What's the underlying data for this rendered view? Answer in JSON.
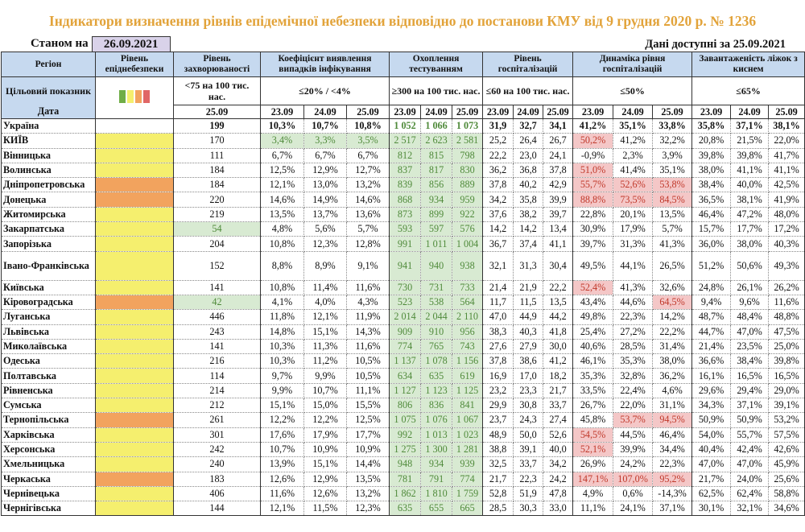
{
  "title": "Індикатори визначення рівнів епідемічної небезпеки відповідно до постанови КМУ від 9 грудня 2020 р. № 1236",
  "as_of_label": "Станом на",
  "as_of_date": "26.09.2021",
  "available_label": "Дані доступні за 25.09.2021",
  "headers": {
    "region": "Регіон",
    "epid_level": "Рівень епіднебезпеки",
    "incidence": "Рівень захворюваності",
    "coef": "Коефіцієнт виявлення випадків інфікування",
    "testing": "Охоплення тестуванням",
    "hosp": "Рівень госпіталізацій",
    "dyn": "Динаміка рівня госпіталізацій",
    "beds": "Завантаженість ліжок з киснем"
  },
  "targets": {
    "label": "Цільовий показник",
    "incidence": "<75 на 100 тис. нас.",
    "coef": "≤20% / <4%",
    "testing": "≥300 на 100 тис. нас.",
    "hosp": "≤60 на 100 тис. нас.",
    "dyn": "≤50%",
    "beds": "≤65%"
  },
  "legend_colors": [
    "#70ad47",
    "#f5ef6e",
    "#f2a35e",
    "#e06666"
  ],
  "date_label": "Дата",
  "incidence_date": "25.09",
  "dates": [
    "23.09",
    "24.09",
    "25.09"
  ],
  "colors": {
    "yellow": "#f5ef6e",
    "orange": "#f2a35e",
    "green_bg": "#d8ead2",
    "red_bg": "#f4c7c7"
  },
  "rows": [
    {
      "name": "Україна",
      "level": "none",
      "incidence": "199",
      "coef": [
        "10,3%",
        "10,7%",
        "10,8%"
      ],
      "testing": [
        "1 052",
        "1 066",
        "1 073"
      ],
      "hosp": [
        "31,9",
        "32,7",
        "34,1"
      ],
      "dyn": [
        "41,2%",
        "35,1%",
        "33,8%"
      ],
      "beds": [
        "35,8%",
        "37,1%",
        "38,1%"
      ]
    },
    {
      "name": "КИЇВ",
      "level": "yellow",
      "incidence": "170",
      "coef": [
        "3,4%",
        "3,3%",
        "3,5%"
      ],
      "testing": [
        "2 517",
        "2 623",
        "2 581"
      ],
      "hosp": [
        "25,2",
        "26,4",
        "26,7"
      ],
      "dyn": [
        "50,2%",
        "41,2%",
        "32,2%"
      ],
      "beds": [
        "20,8%",
        "21,5%",
        "22,0%"
      ]
    },
    {
      "name": "Вінницька",
      "level": "yellow",
      "incidence": "111",
      "coef": [
        "6,7%",
        "6,7%",
        "6,7%"
      ],
      "testing": [
        "812",
        "815",
        "798"
      ],
      "hosp": [
        "22,2",
        "23,0",
        "24,1"
      ],
      "dyn": [
        "-0,9%",
        "2,3%",
        "3,9%"
      ],
      "beds": [
        "39,8%",
        "39,8%",
        "41,7%"
      ]
    },
    {
      "name": "Волинська",
      "level": "yellow",
      "incidence": "184",
      "coef": [
        "12,5%",
        "12,9%",
        "12,7%"
      ],
      "testing": [
        "837",
        "817",
        "830"
      ],
      "hosp": [
        "36,2",
        "36,8",
        "37,8"
      ],
      "dyn": [
        "51,0%",
        "41,4%",
        "35,1%"
      ],
      "beds": [
        "38,0%",
        "41,1%",
        "41,1%"
      ]
    },
    {
      "name": "Дніпропетровська",
      "level": "orange",
      "incidence": "184",
      "coef": [
        "12,1%",
        "13,0%",
        "13,2%"
      ],
      "testing": [
        "839",
        "856",
        "889"
      ],
      "hosp": [
        "37,8",
        "40,2",
        "42,9"
      ],
      "dyn": [
        "55,7%",
        "52,6%",
        "53,8%"
      ],
      "beds": [
        "38,4%",
        "40,0%",
        "42,5%"
      ]
    },
    {
      "name": "Донецька",
      "level": "orange",
      "incidence": "220",
      "coef": [
        "14,6%",
        "14,9%",
        "14,6%"
      ],
      "testing": [
        "868",
        "934",
        "959"
      ],
      "hosp": [
        "34,2",
        "35,8",
        "39,9"
      ],
      "dyn": [
        "88,8%",
        "73,5%",
        "84,5%"
      ],
      "beds": [
        "36,5%",
        "38,1%",
        "41,9%"
      ]
    },
    {
      "name": "Житомирська",
      "level": "yellow",
      "incidence": "219",
      "coef": [
        "13,5%",
        "13,7%",
        "13,6%"
      ],
      "testing": [
        "873",
        "899",
        "922"
      ],
      "hosp": [
        "37,6",
        "38,2",
        "39,7"
      ],
      "dyn": [
        "22,8%",
        "20,1%",
        "13,5%"
      ],
      "beds": [
        "46,4%",
        "47,2%",
        "48,0%"
      ]
    },
    {
      "name": "Закарпатська",
      "level": "yellow",
      "incidence": "54",
      "coef": [
        "4,8%",
        "5,6%",
        "5,7%"
      ],
      "testing": [
        "593",
        "597",
        "576"
      ],
      "hosp": [
        "14,2",
        "14,2",
        "13,4"
      ],
      "dyn": [
        "30,9%",
        "17,9%",
        "5,7%"
      ],
      "beds": [
        "15,7%",
        "17,7%",
        "17,2%"
      ]
    },
    {
      "name": "Запорізька",
      "level": "yellow",
      "incidence": "204",
      "coef": [
        "10,8%",
        "12,3%",
        "12,8%"
      ],
      "testing": [
        "991",
        "1 011",
        "1 004"
      ],
      "hosp": [
        "36,7",
        "37,4",
        "41,1"
      ],
      "dyn": [
        "39,7%",
        "31,3%",
        "41,3%"
      ],
      "beds": [
        "36,0%",
        "38,0%",
        "40,3%"
      ]
    },
    {
      "name": "Івано-Франківська",
      "level": "yellow",
      "incidence": "152",
      "coef": [
        "8,8%",
        "8,9%",
        "9,1%"
      ],
      "testing": [
        "941",
        "940",
        "938"
      ],
      "hosp": [
        "32,1",
        "31,3",
        "30,4"
      ],
      "dyn": [
        "49,5%",
        "44,1%",
        "26,5%"
      ],
      "beds": [
        "51,2%",
        "50,6%",
        "49,3%"
      ]
    },
    {
      "name": "Київська",
      "level": "yellow",
      "incidence": "141",
      "coef": [
        "10,8%",
        "11,4%",
        "11,6%"
      ],
      "testing": [
        "730",
        "731",
        "733"
      ],
      "hosp": [
        "21,4",
        "21,9",
        "22,2"
      ],
      "dyn": [
        "52,4%",
        "41,3%",
        "32,6%"
      ],
      "beds": [
        "24,8%",
        "26,1%",
        "26,2%"
      ]
    },
    {
      "name": "Кіровоградська",
      "level": "orange",
      "incidence": "42",
      "coef": [
        "4,1%",
        "4,0%",
        "4,3%"
      ],
      "testing": [
        "523",
        "538",
        "564"
      ],
      "hosp": [
        "11,7",
        "11,5",
        "13,5"
      ],
      "dyn": [
        "43,4%",
        "44,6%",
        "64,5%"
      ],
      "beds": [
        "9,4%",
        "9,6%",
        "11,6%"
      ]
    },
    {
      "name": "Луганська",
      "level": "yellow",
      "incidence": "446",
      "coef": [
        "11,8%",
        "12,1%",
        "11,9%"
      ],
      "testing": [
        "2 014",
        "2 044",
        "2 110"
      ],
      "hosp": [
        "47,0",
        "44,9",
        "44,2"
      ],
      "dyn": [
        "49,8%",
        "22,3%",
        "14,2%"
      ],
      "beds": [
        "48,7%",
        "48,4%",
        "48,8%"
      ]
    },
    {
      "name": "Львівська",
      "level": "yellow",
      "incidence": "243",
      "coef": [
        "14,8%",
        "15,1%",
        "14,3%"
      ],
      "testing": [
        "909",
        "910",
        "956"
      ],
      "hosp": [
        "38,3",
        "40,3",
        "41,8"
      ],
      "dyn": [
        "25,4%",
        "27,2%",
        "22,2%"
      ],
      "beds": [
        "44,7%",
        "47,0%",
        "47,5%"
      ]
    },
    {
      "name": "Миколаївська",
      "level": "yellow",
      "incidence": "141",
      "coef": [
        "10,3%",
        "11,3%",
        "11,6%"
      ],
      "testing": [
        "774",
        "765",
        "743"
      ],
      "hosp": [
        "27,6",
        "27,9",
        "30,0"
      ],
      "dyn": [
        "40,6%",
        "28,5%",
        "31,4%"
      ],
      "beds": [
        "21,4%",
        "23,5%",
        "25,0%"
      ]
    },
    {
      "name": "Одеська",
      "level": "yellow",
      "incidence": "216",
      "coef": [
        "10,3%",
        "11,2%",
        "10,5%"
      ],
      "testing": [
        "1 137",
        "1 078",
        "1 156"
      ],
      "hosp": [
        "37,8",
        "38,6",
        "41,2"
      ],
      "dyn": [
        "46,1%",
        "35,3%",
        "38,0%"
      ],
      "beds": [
        "36,6%",
        "38,4%",
        "39,8%"
      ]
    },
    {
      "name": "Полтавська",
      "level": "yellow",
      "incidence": "114",
      "coef": [
        "9,7%",
        "9,9%",
        "10,5%"
      ],
      "testing": [
        "634",
        "635",
        "619"
      ],
      "hosp": [
        "16,9",
        "17,0",
        "18,2"
      ],
      "dyn": [
        "35,3%",
        "32,8%",
        "36,2%"
      ],
      "beds": [
        "16,1%",
        "16,5%",
        "16,5%"
      ]
    },
    {
      "name": "Рівненська",
      "level": "yellow",
      "incidence": "214",
      "coef": [
        "9,9%",
        "10,7%",
        "11,1%"
      ],
      "testing": [
        "1 127",
        "1 123",
        "1 125"
      ],
      "hosp": [
        "23,2",
        "23,3",
        "21,7"
      ],
      "dyn": [
        "33,5%",
        "22,4%",
        "4,6%"
      ],
      "beds": [
        "29,6%",
        "29,4%",
        "29,0%"
      ]
    },
    {
      "name": "Сумська",
      "level": "yellow",
      "incidence": "212",
      "coef": [
        "15,1%",
        "15,0%",
        "15,5%"
      ],
      "testing": [
        "806",
        "836",
        "841"
      ],
      "hosp": [
        "29,9",
        "30,8",
        "33,7"
      ],
      "dyn": [
        "26,7%",
        "22,0%",
        "31,1%"
      ],
      "beds": [
        "34,3%",
        "37,1%",
        "39,1%"
      ]
    },
    {
      "name": "Тернопільська",
      "level": "orange",
      "incidence": "261",
      "coef": [
        "12,2%",
        "12,2%",
        "12,5%"
      ],
      "testing": [
        "1 075",
        "1 076",
        "1 067"
      ],
      "hosp": [
        "23,7",
        "24,3",
        "27,4"
      ],
      "dyn": [
        "45,8%",
        "53,7%",
        "94,5%"
      ],
      "beds": [
        "50,9%",
        "50,9%",
        "53,2%"
      ]
    },
    {
      "name": "Харківська",
      "level": "yellow",
      "incidence": "301",
      "coef": [
        "17,6%",
        "17,9%",
        "17,7%"
      ],
      "testing": [
        "992",
        "1 013",
        "1 023"
      ],
      "hosp": [
        "48,9",
        "50,0",
        "52,6"
      ],
      "dyn": [
        "54,5%",
        "44,5%",
        "46,4%"
      ],
      "beds": [
        "54,0%",
        "55,7%",
        "57,5%"
      ]
    },
    {
      "name": "Херсонська",
      "level": "yellow",
      "incidence": "242",
      "coef": [
        "10,7%",
        "10,9%",
        "10,9%"
      ],
      "testing": [
        "1 275",
        "1 300",
        "1 281"
      ],
      "hosp": [
        "38,8",
        "39,1",
        "40,0"
      ],
      "dyn": [
        "52,1%",
        "39,9%",
        "34,4%"
      ],
      "beds": [
        "40,4%",
        "42,4%",
        "42,6%"
      ]
    },
    {
      "name": "Хмельницька",
      "level": "yellow",
      "incidence": "240",
      "coef": [
        "13,9%",
        "15,1%",
        "14,4%"
      ],
      "testing": [
        "948",
        "934",
        "939"
      ],
      "hosp": [
        "32,5",
        "33,7",
        "34,2"
      ],
      "dyn": [
        "26,9%",
        "24,2%",
        "22,3%"
      ],
      "beds": [
        "47,0%",
        "47,0%",
        "45,9%"
      ]
    },
    {
      "name": "Черкаська",
      "level": "orange",
      "incidence": "183",
      "coef": [
        "12,6%",
        "12,9%",
        "13,5%"
      ],
      "testing": [
        "781",
        "791",
        "774"
      ],
      "hosp": [
        "21,7",
        "22,3",
        "24,2"
      ],
      "dyn": [
        "147,1%",
        "107,0%",
        "95,2%"
      ],
      "beds": [
        "21,7%",
        "24,0%",
        "25,6%"
      ]
    },
    {
      "name": "Чернівецька",
      "level": "yellow",
      "incidence": "406",
      "coef": [
        "11,6%",
        "12,6%",
        "13,2%"
      ],
      "testing": [
        "1 862",
        "1 810",
        "1 759"
      ],
      "hosp": [
        "52,8",
        "51,9",
        "47,8"
      ],
      "dyn": [
        "4,9%",
        "0,6%",
        "-14,3%"
      ],
      "beds": [
        "62,5%",
        "62,4%",
        "58,8%"
      ]
    },
    {
      "name": "Чернігівська",
      "level": "yellow",
      "incidence": "144",
      "coef": [
        "12,1%",
        "11,5%",
        "12,3%"
      ],
      "testing": [
        "635",
        "655",
        "665"
      ],
      "hosp": [
        "28,5",
        "30,3",
        "33,0"
      ],
      "dyn": [
        "11,1%",
        "24,1%",
        "37,1%"
      ],
      "beds": [
        "30,1%",
        "32,1%",
        "34,6%"
      ]
    }
  ]
}
